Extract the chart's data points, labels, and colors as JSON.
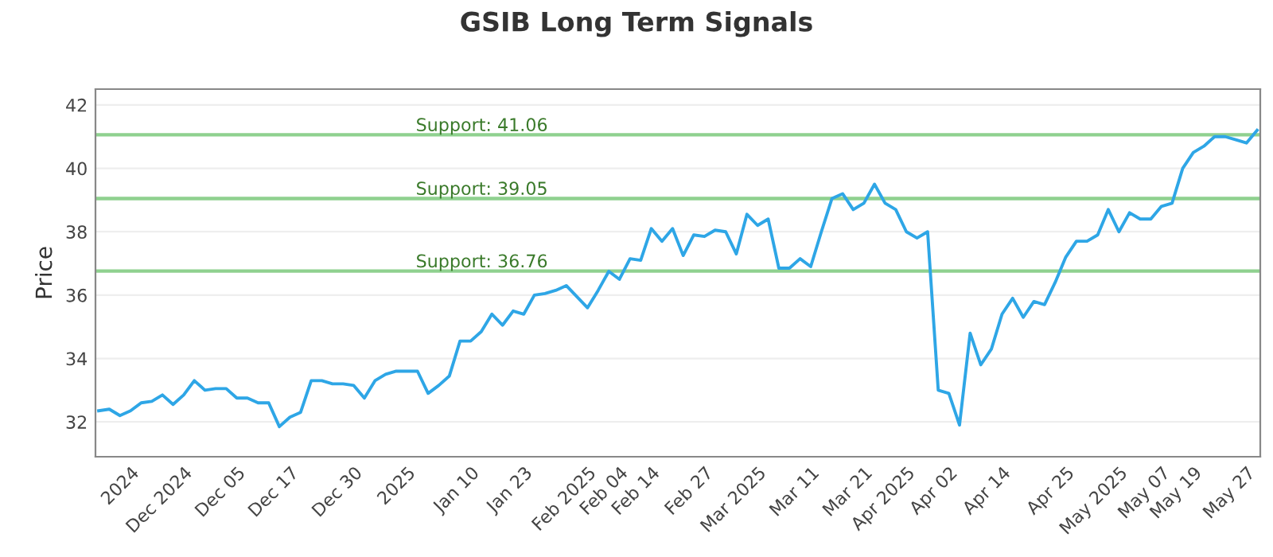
{
  "chart_data": {
    "type": "line",
    "title": "GSIB Long Term Signals",
    "ylabel": "Price",
    "categories": [
      null,
      null,
      null,
      "2024",
      null,
      null,
      null,
      null,
      "Dec 2024",
      null,
      null,
      null,
      null,
      "Dec 05",
      null,
      null,
      null,
      null,
      "Dec 17",
      null,
      null,
      null,
      null,
      null,
      "Dec 30",
      null,
      null,
      null,
      null,
      "2025",
      null,
      null,
      null,
      null,
      null,
      "Jan 10",
      null,
      null,
      null,
      null,
      "Jan 23",
      null,
      null,
      null,
      null,
      null,
      "Feb 2025",
      null,
      null,
      "Feb 04",
      null,
      null,
      "Feb 14",
      null,
      null,
      null,
      null,
      "Feb 27",
      null,
      null,
      null,
      null,
      "Mar 2025",
      null,
      null,
      null,
      null,
      "Mar 11",
      null,
      null,
      null,
      null,
      "Mar 21",
      null,
      null,
      null,
      "Apr 2025",
      null,
      null,
      null,
      "Apr 02",
      null,
      null,
      null,
      null,
      "Apr 14",
      null,
      null,
      null,
      null,
      null,
      "Apr 25",
      null,
      null,
      null,
      null,
      "May 2025",
      null,
      null,
      null,
      "May 07",
      null,
      null,
      "May 19",
      null,
      null,
      null,
      null,
      "May 27",
      null
    ],
    "series": [
      {
        "color": "#2ea6e6",
        "values": [
          32.35,
          32.4,
          32.2,
          32.35,
          32.6,
          32.65,
          32.85,
          32.55,
          32.85,
          33.3,
          33.0,
          33.05,
          33.05,
          32.75,
          32.75,
          32.6,
          32.6,
          31.85,
          32.15,
          32.3,
          33.3,
          33.3,
          33.2,
          33.2,
          33.15,
          32.75,
          33.3,
          33.5,
          33.6,
          33.6,
          33.6,
          32.9,
          33.15,
          33.45,
          34.55,
          34.55,
          34.85,
          35.4,
          35.05,
          35.5,
          35.4,
          36.0,
          36.05,
          36.15,
          36.3,
          35.95,
          35.6,
          36.15,
          36.75,
          36.5,
          37.15,
          37.1,
          38.1,
          37.7,
          38.1,
          37.25,
          37.9,
          37.85,
          38.05,
          38.0,
          37.3,
          38.55,
          38.2,
          38.4,
          36.85,
          36.85,
          37.15,
          36.9,
          38.0,
          39.05,
          39.2,
          38.7,
          38.9,
          39.5,
          38.9,
          38.7,
          38.0,
          37.8,
          38.0,
          33.0,
          32.9,
          31.9,
          34.8,
          33.8,
          34.3,
          35.4,
          35.9,
          35.3,
          35.8,
          35.7,
          36.4,
          37.2,
          37.7,
          37.7,
          37.9,
          38.7,
          38.0,
          38.6,
          38.4,
          38.4,
          38.8,
          38.9,
          40.0,
          40.5,
          40.7,
          41.0,
          41.0,
          40.9,
          40.8,
          41.2
        ]
      }
    ],
    "ylim": [
      30.9,
      42.5
    ],
    "yticks": [
      32,
      34,
      36,
      38,
      40,
      42
    ],
    "grid": "y",
    "marker": "none",
    "line_style": "solid",
    "ref_lines": [
      {
        "axis": "y",
        "value": 41.06,
        "label": "Support: 41.06",
        "color": "#8fd18f"
      },
      {
        "axis": "y",
        "value": 39.05,
        "label": "Support: 39.05",
        "color": "#8fd18f"
      },
      {
        "axis": "y",
        "value": 36.76,
        "label": "Support: 36.76",
        "color": "#8fd18f"
      }
    ]
  }
}
